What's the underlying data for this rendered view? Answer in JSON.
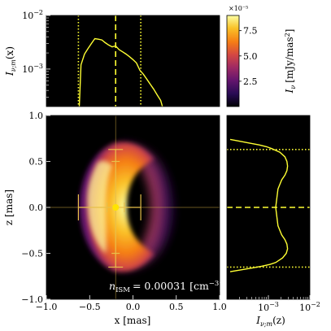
{
  "chart_data": [
    {
      "id": "main_image",
      "type": "heatmap",
      "xlabel": "x [mas]",
      "ylabel": "z [mas]",
      "xlim": [
        -1.0,
        1.0
      ],
      "ylim": [
        -1.0,
        1.0
      ],
      "x_ticks": [
        -1.0,
        -0.5,
        0.0,
        0.5,
        1.0
      ],
      "x_tick_labels": [
        "−1.0",
        "−0.5",
        "0.0",
        "0.5",
        "1.0"
      ],
      "y_ticks": [
        -1.0,
        -0.5,
        0.0,
        0.5,
        1.0
      ],
      "y_tick_labels": [
        "−1.0",
        "−0.5",
        "0.0",
        "0.5",
        "1.0"
      ],
      "annotation": "n_ISM = 0.00031 [cm^-3]",
      "annotation_parts": {
        "n": "n",
        "sub": "ISM",
        "eq": "= 0.00031 [cm",
        "sup": "−3",
        "close": "]"
      },
      "centroid": {
        "x": -0.2,
        "z": 0.0
      },
      "errorbars": {
        "x_inner": [
          -0.3,
          -0.1
        ],
        "x_outer": [
          -0.63,
          0.09
        ],
        "z_inner": [
          -0.5,
          0.5
        ],
        "z_outer": [
          -0.65,
          0.63
        ]
      }
    },
    {
      "id": "colorbar",
      "type": "colorbar",
      "label": "I_ν [mJy/mas²]",
      "label_parts": {
        "i": "I",
        "sub": "ν",
        "rest": "[mJy/mas",
        "sup": "2",
        "close": "]"
      },
      "range": [
        0,
        9e-05
      ],
      "ticks": [
        2.5,
        5.0,
        7.5
      ],
      "tick_labels": [
        "2.5",
        "5.0",
        "7.5"
      ],
      "offset_text": "×10⁻⁵"
    },
    {
      "id": "top_profile",
      "type": "line",
      "ylabel": "I_ν;m(x)",
      "ylabel_parts": {
        "i": "I",
        "sub": "ν;m",
        "rest": "(x)"
      },
      "xlim": [
        -1.0,
        1.0
      ],
      "ylim": [
        0.0002,
        0.01
      ],
      "yscale": "log",
      "y_ticks": [
        0.001,
        0.01
      ],
      "y_tick_labels": [
        {
          "base": "10",
          "exp": "−3"
        },
        {
          "base": "10",
          "exp": "−2"
        }
      ],
      "x": [
        -0.62,
        -0.6,
        -0.56,
        -0.52,
        -0.48,
        -0.44,
        -0.4,
        -0.36,
        -0.32,
        -0.28,
        -0.24,
        -0.2,
        -0.16,
        -0.12,
        -0.08,
        -0.04,
        0.0,
        0.04,
        0.08,
        0.12,
        0.16,
        0.2,
        0.24,
        0.28,
        0.32,
        0.34
      ],
      "y": [
        0.0002,
        0.0012,
        0.0019,
        0.0024,
        0.003,
        0.0037,
        0.0036,
        0.0035,
        0.0031,
        0.0028,
        0.0026,
        0.0027,
        0.0023,
        0.0021,
        0.0019,
        0.0017,
        0.0015,
        0.0013,
        0.00095,
        0.0008,
        0.00065,
        0.00052,
        0.00042,
        0.00033,
        0.00026,
        0.0002
      ],
      "markers": {
        "dashed": [
          -0.2
        ],
        "dotted": [
          -0.63,
          0.09
        ]
      }
    },
    {
      "id": "side_profile",
      "type": "line",
      "xlabel": "I_ν;m(z)",
      "xlabel_parts": {
        "i": "I",
        "sub": "ν;m",
        "rest": "(z)"
      },
      "xscale": "log",
      "xlim": [
        0.0001,
        0.01
      ],
      "ylim": [
        -1.0,
        1.0
      ],
      "x_ticks": [
        0.001,
        0.01
      ],
      "x_tick_labels": [
        {
          "base": "10",
          "exp": "−3"
        },
        {
          "base": "10",
          "exp": "−2"
        }
      ],
      "z": [
        0.74,
        0.72,
        0.7,
        0.68,
        0.66,
        0.64,
        0.62,
        0.6,
        0.55,
        0.5,
        0.45,
        0.4,
        0.35,
        0.3,
        0.2,
        0.1,
        0.0,
        -0.1,
        -0.2,
        -0.3,
        -0.35,
        -0.4,
        -0.45,
        -0.5,
        -0.55,
        -0.6,
        -0.62,
        -0.64,
        -0.66,
        -0.68,
        -0.7
      ],
      "intensity": [
        0.00012,
        0.0002,
        0.00035,
        0.0006,
        0.0009,
        0.0012,
        0.0015,
        0.0019,
        0.0025,
        0.0028,
        0.0029,
        0.0028,
        0.0025,
        0.0021,
        0.0017,
        0.0016,
        0.0015,
        0.0016,
        0.0017,
        0.0021,
        0.0025,
        0.0028,
        0.0029,
        0.0027,
        0.0022,
        0.0015,
        0.0011,
        0.0007,
        0.0004,
        0.00022,
        0.00012
      ],
      "markers": {
        "dashed": [
          0.0
        ],
        "dotted": [
          0.63,
          -0.65
        ]
      }
    }
  ],
  "colors": {
    "line": "#ffff33",
    "marker": "#ffe400",
    "errorbar": "#e8c04a",
    "panel_bg": "#000000",
    "colormap": [
      "#000004",
      "#280b54",
      "#65156e",
      "#9f2a63",
      "#d44842",
      "#f57d15",
      "#fac228",
      "#fcffa4"
    ]
  }
}
